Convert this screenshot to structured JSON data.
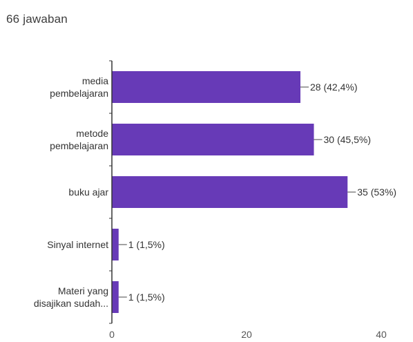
{
  "header": {
    "response_count": "66 jawaban"
  },
  "chart_data": {
    "type": "bar",
    "orientation": "horizontal",
    "categories": [
      [
        "media",
        "pembelajaran"
      ],
      [
        "metode",
        "pembelajaran"
      ],
      [
        "buku ajar"
      ],
      [
        "Sinyal internet"
      ],
      [
        "Materi yang",
        "disajikan sudah..."
      ]
    ],
    "values": [
      28,
      30,
      35,
      1,
      1
    ],
    "data_labels": [
      "28 (42,4%)",
      "30 (45,5%)",
      "35 (53%)",
      "1 (1,5%)",
      "1 (1,5%)"
    ],
    "xticks": [
      0,
      20,
      40
    ],
    "xlim": [
      0,
      40
    ],
    "title": "",
    "xlabel": "",
    "ylabel": "",
    "grid": false,
    "colors": {
      "bar": "#673ab7",
      "axis": "#333333",
      "leader": "#444444",
      "label_text": "#333333",
      "tick_text": "#555555"
    }
  }
}
